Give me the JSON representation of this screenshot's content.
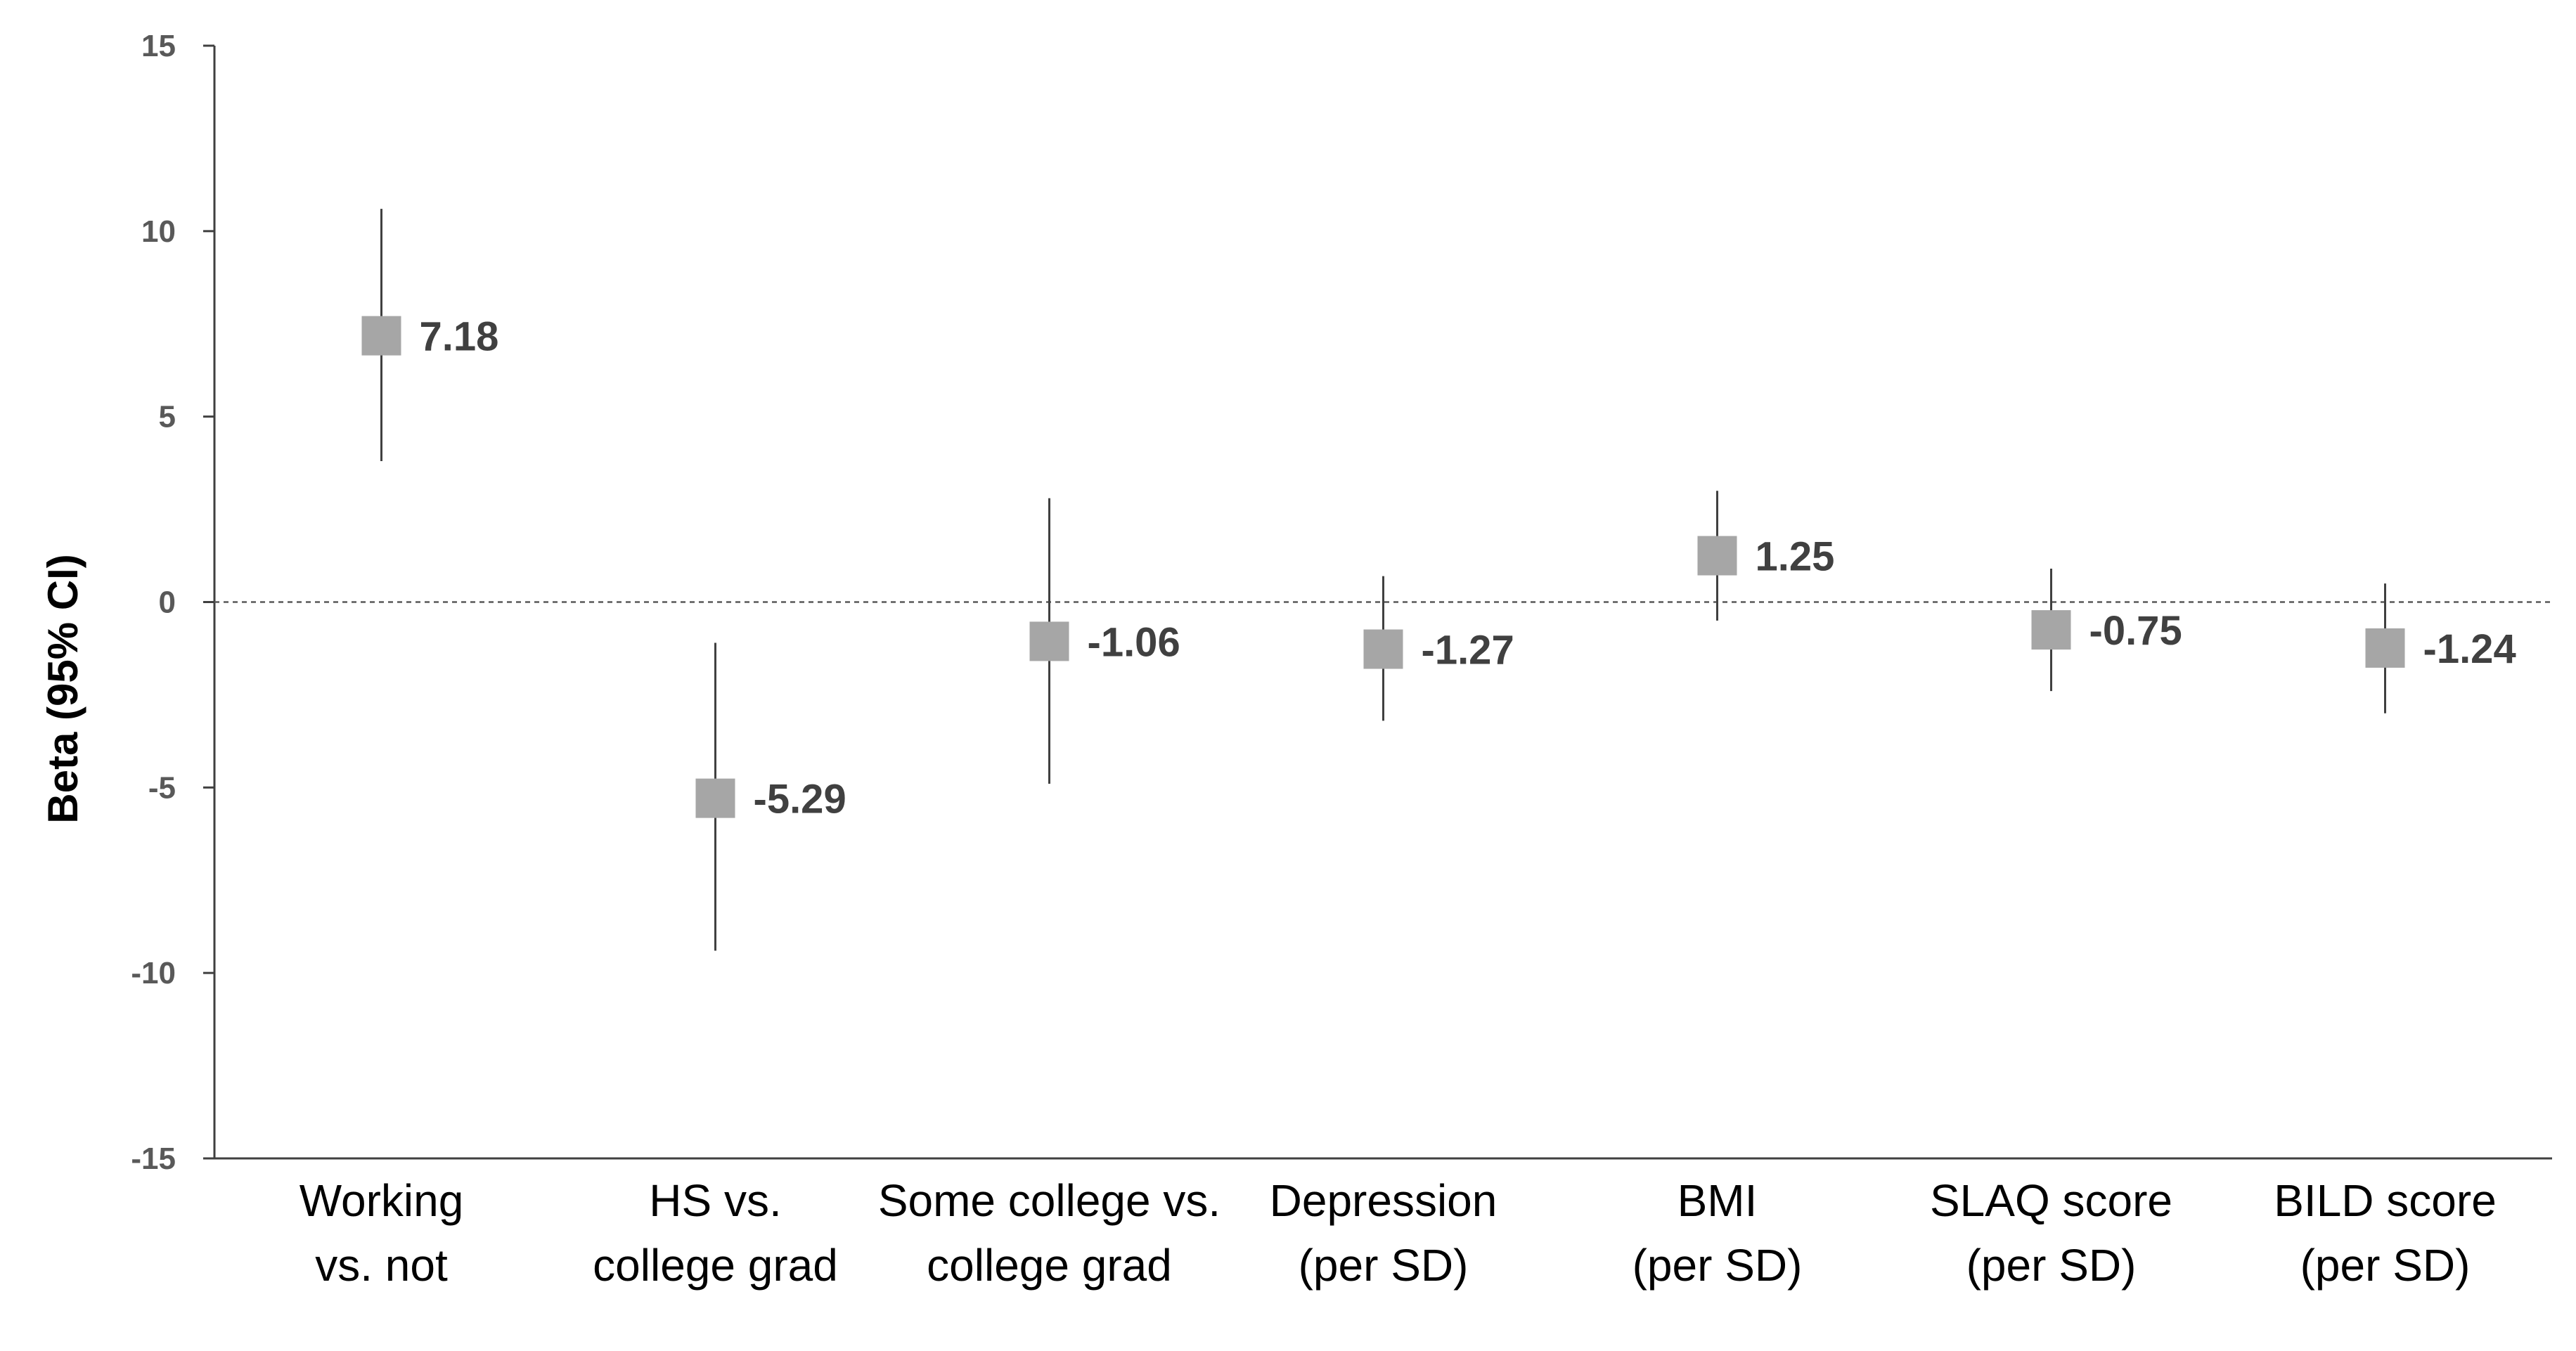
{
  "chart_data": {
    "type": "scatter",
    "subtype": "forest-plot",
    "title": "",
    "xlabel": "",
    "ylabel": "Beta (95% CI)",
    "ylim": [
      -15,
      15
    ],
    "yticks": [
      15,
      10,
      5,
      0,
      -5,
      -10,
      -15
    ],
    "grid": false,
    "reference_line": {
      "y": 0,
      "style": "dotted"
    },
    "marker_color": "#A6A6A6",
    "whisker_color": "#404040",
    "categories": [
      [
        "Working",
        "vs. not"
      ],
      [
        "HS vs.",
        "college grad"
      ],
      [
        "Some college vs.",
        "college grad"
      ],
      [
        "Depression",
        "(per SD)"
      ],
      [
        "BMI",
        "(per SD)"
      ],
      [
        "SLAQ score",
        "(per SD)"
      ],
      [
        "BILD score",
        "(per SD)"
      ]
    ],
    "series": [
      {
        "values": [
          7.18,
          -5.29,
          -1.06,
          -1.27,
          1.25,
          -0.75,
          -1.24
        ],
        "lower": [
          3.8,
          -9.4,
          -4.9,
          -3.2,
          -0.5,
          -2.4,
          -3.0
        ],
        "upper": [
          10.6,
          -1.1,
          2.8,
          0.7,
          3.0,
          0.9,
          0.5
        ],
        "labels": [
          "7.18",
          "-5.29",
          "-1.06",
          "-1.27",
          "1.25",
          "-0.75",
          "-1.24"
        ]
      }
    ]
  }
}
